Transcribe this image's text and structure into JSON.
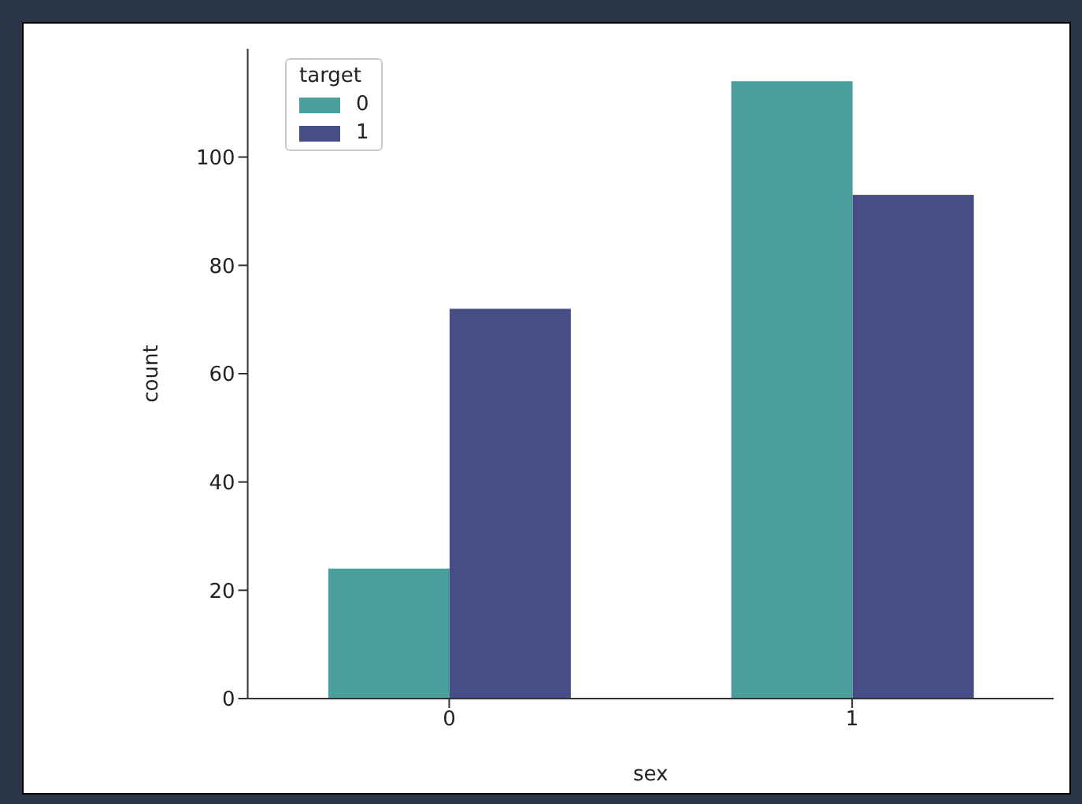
{
  "chart_data": {
    "type": "bar",
    "categories": [
      "0",
      "1"
    ],
    "xlabel": "sex",
    "ylabel": "count",
    "legend_title": "target",
    "series": [
      {
        "name": "0",
        "color": "#4a9e9c",
        "values": [
          24,
          114
        ]
      },
      {
        "name": "1",
        "color": "#474e85",
        "values": [
          72,
          93
        ]
      }
    ],
    "ylim": [
      0,
      120
    ],
    "yticks": [
      0,
      20,
      40,
      60,
      80,
      100
    ],
    "grid": false,
    "legend": "top left"
  }
}
